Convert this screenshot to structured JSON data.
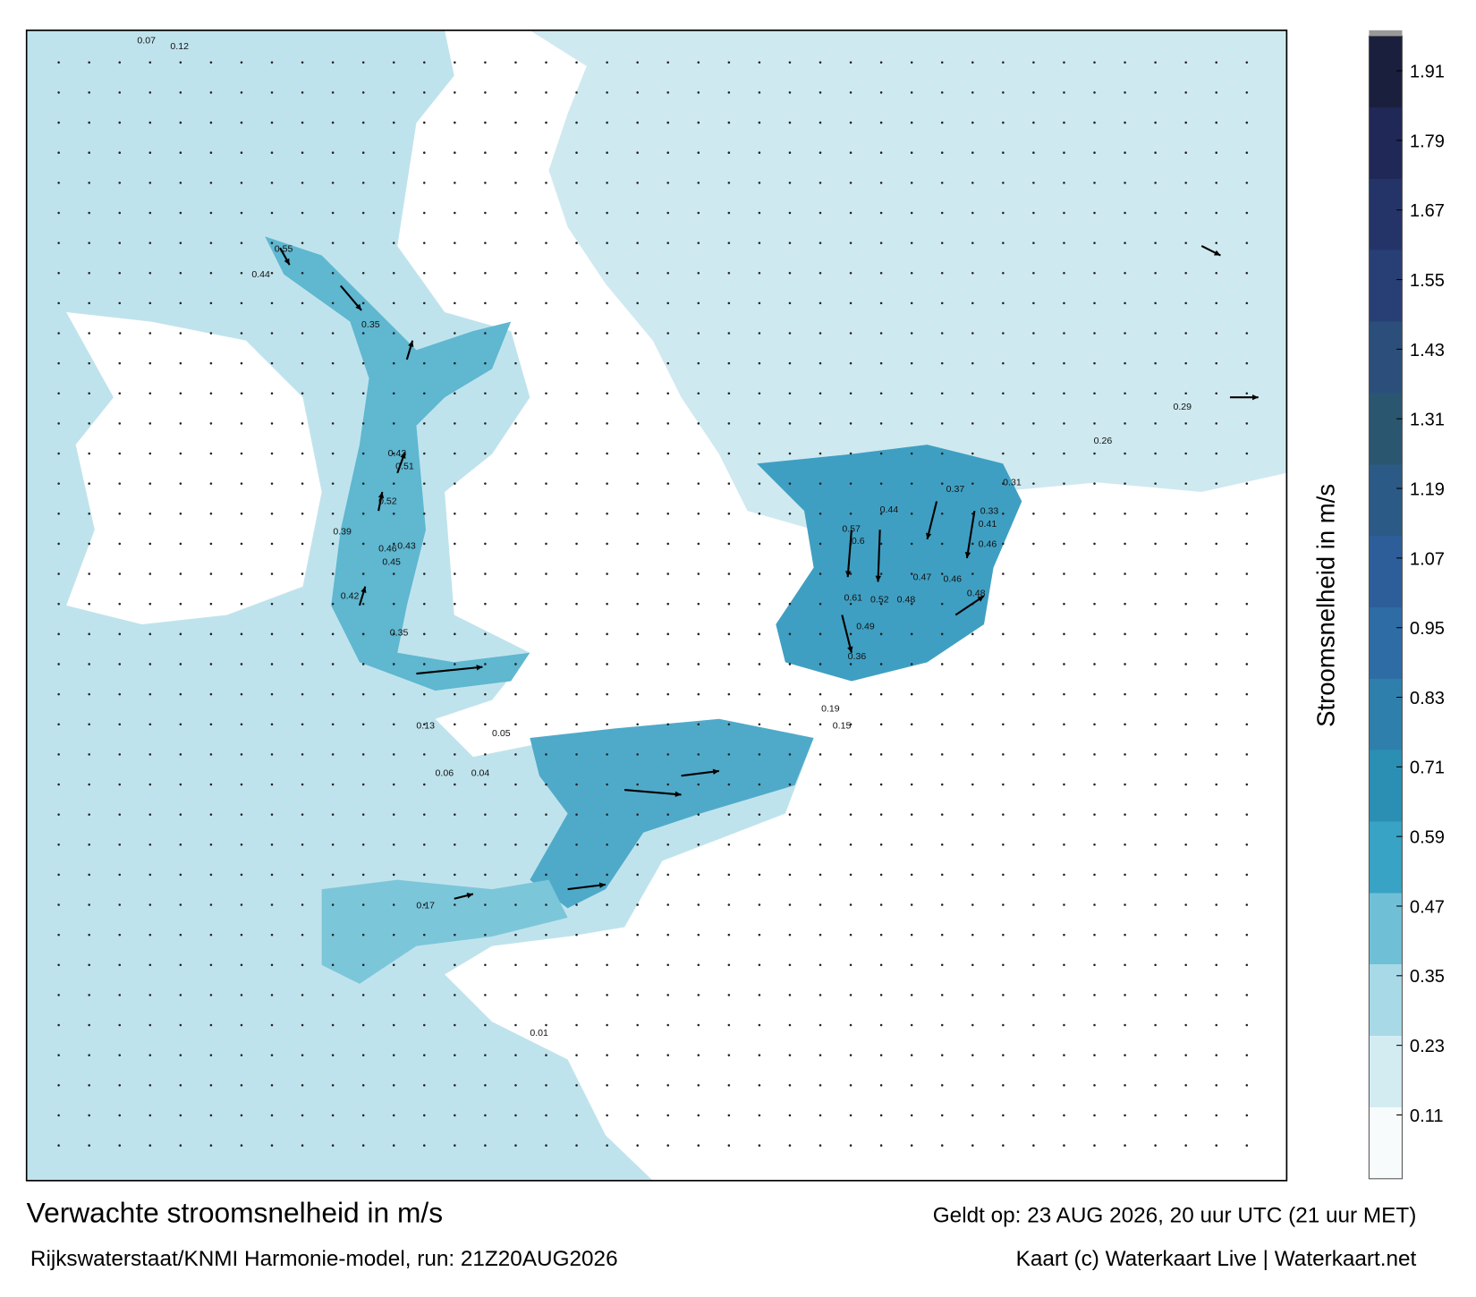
{
  "header": {
    "title": "Verwachte stroomsnelheid in m/s",
    "subtitle": "Rijkswaterstaat/KNMI Harmonie-model, run: 21Z20AUG2026",
    "valid": "Geldt op: 23 AUG 2026, 20 uur UTC (21 uur MET)",
    "credit": "Kaart (c) Waterkaart Live | Waterkaart.net"
  },
  "colorbar": {
    "label": "Stroomsnelheid in m/s",
    "lim": [
      0,
      1.97
    ],
    "ticks": [
      0.11,
      0.23,
      0.35,
      0.47,
      0.59,
      0.71,
      0.83,
      0.95,
      1.07,
      1.19,
      1.31,
      1.43,
      1.55,
      1.67,
      1.79,
      1.91
    ],
    "colors": [
      "#f7fbfc",
      "#d3ecf2",
      "#a8d9e6",
      "#6fc0d6",
      "#38a3c4",
      "#2b8fb3",
      "#2f7fac",
      "#2e6ca5",
      "#2d5e9a",
      "#2c5a86",
      "#2a5670",
      "#2b4f7a",
      "#283f76",
      "#243469",
      "#1f2856",
      "#1a1f3d"
    ]
  },
  "map_labels": [
    0.07,
    0.12,
    0.55,
    0.44,
    0.35,
    0.43,
    0.51,
    0.46,
    0.52,
    0.39,
    0.45,
    0.42,
    0.35,
    0.43,
    0.57,
    0.6,
    0.61,
    0.52,
    0.48,
    0.44,
    0.37,
    0.41,
    0.46,
    0.47,
    0.49,
    0.46,
    0.48,
    0.36,
    0.33,
    0.31,
    0.29,
    0.26,
    0.15,
    0.19,
    0.13,
    0.05,
    0.04,
    0.01,
    0.06,
    0.17
  ]
}
